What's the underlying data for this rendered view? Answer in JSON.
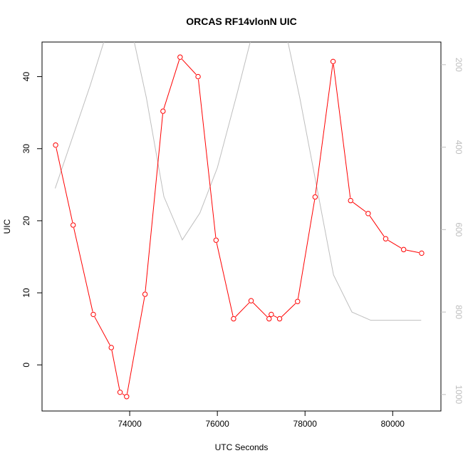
{
  "chart_data": {
    "type": "line",
    "title": "ORCAS RF14vlonN UIC",
    "xlabel": "UTC Seconds",
    "ylabel": "UIC",
    "xlim": [
      72000,
      81100
    ],
    "ylim": [
      -6.4,
      44.8
    ],
    "x_ticks": [
      74000,
      76000,
      78000,
      80000
    ],
    "x_tick_labels": [
      "74000",
      "76000",
      "78000",
      "80000"
    ],
    "y_ticks": [
      0,
      10,
      20,
      30,
      40
    ],
    "y_tick_labels": [
      "0",
      "10",
      "20",
      "30",
      "40"
    ],
    "right_axis": {
      "ylim": [
        1040,
        145
      ],
      "ticks": [
        200,
        400,
        600,
        800,
        1000
      ],
      "tick_labels": [
        "200",
        "400",
        "600",
        "800",
        "1000"
      ],
      "color": "#bebebe"
    },
    "series": [
      {
        "color": "#ff0000",
        "axis": "left",
        "markers": "open-circle",
        "x": [
          72310,
          72710,
          73170,
          73580,
          73780,
          73930,
          74350,
          74760,
          75150,
          75560,
          75970,
          76370,
          76770,
          77180,
          77230,
          77420,
          77830,
          78230,
          78640,
          79040,
          79440,
          79840,
          80250,
          80660
        ],
        "y": [
          30.5,
          19.4,
          7.0,
          2.4,
          -3.8,
          -4.4,
          9.8,
          35.2,
          42.7,
          40.0,
          17.3,
          6.4,
          8.9,
          6.4,
          7.0,
          6.4,
          8.8,
          23.3,
          42.1,
          22.8,
          21.0,
          17.5,
          16.0,
          15.5
        ]
      },
      {
        "color": "#bebebe",
        "axis": "right",
        "markers": "none",
        "x": [
          72300,
          73100,
          73600,
          73920,
          74380,
          74780,
          75200,
          75600,
          76000,
          76450,
          76750,
          77000,
          77350,
          77600,
          77880,
          78650,
          79070,
          79500,
          80250,
          80650
        ],
        "y": [
          500,
          250,
          80,
          55,
          280,
          520,
          625,
          560,
          450,
          270,
          145,
          80,
          100,
          140,
          280,
          710,
          800,
          820,
          820,
          820
        ]
      }
    ]
  }
}
